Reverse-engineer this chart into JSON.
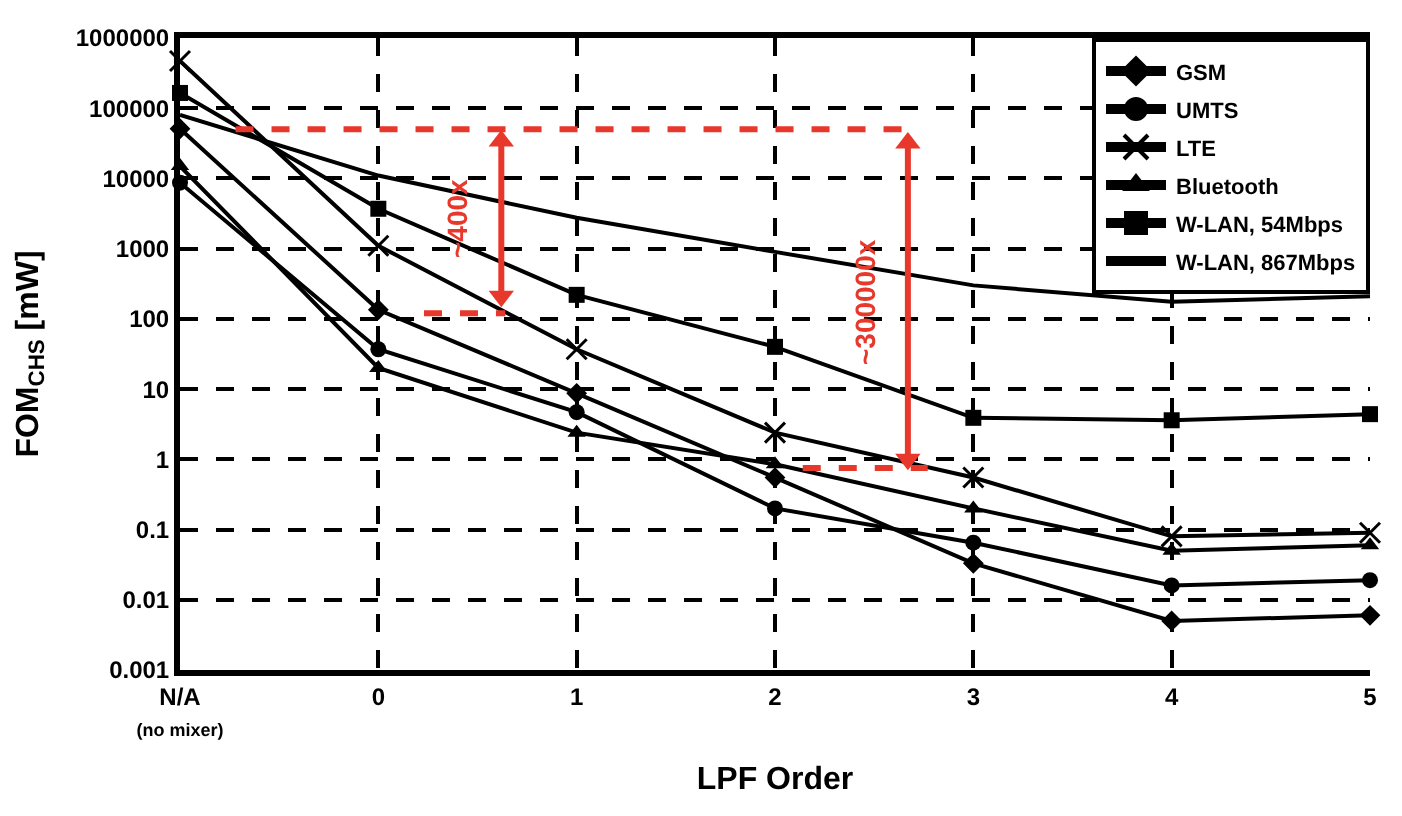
{
  "chart_data": {
    "type": "line",
    "xlabel": "LPF Order",
    "ylabel": "FOM$_{CHS}$ [mW]",
    "x": [
      -1,
      0,
      1,
      2,
      3,
      4,
      5
    ],
    "xlim": [
      -1,
      5
    ],
    "xticks": [
      {
        "value": -1,
        "label": "N/A\n(no mixer)"
      },
      0,
      1,
      2,
      3,
      4,
      5
    ],
    "log": "y",
    "ylim": [
      0.001,
      1000000
    ],
    "yticks": [
      0.001,
      0.01,
      0.1,
      1,
      10,
      100,
      1000,
      10000,
      100000,
      1000000
    ],
    "grid": true,
    "legend": "top right",
    "series": [
      {
        "name": "GSM",
        "color": "#000000",
        "marker": "diamond",
        "values": [
          51000,
          135,
          8.7,
          0.55,
          0.033,
          0.005,
          0.006
        ]
      },
      {
        "name": "UMTS",
        "color": "#000000",
        "marker": "circle",
        "values": [
          8700,
          37,
          4.7,
          0.2,
          0.065,
          0.016,
          0.019
        ]
      },
      {
        "name": "LTE",
        "color": "#000000",
        "marker": "cross",
        "values": [
          470000,
          1100,
          37,
          2.4,
          0.55,
          0.08,
          0.09
        ]
      },
      {
        "name": "Bluetooth",
        "color": "#000000",
        "marker": "triangle",
        "values": [
          15000,
          20,
          2.4,
          0.85,
          0.2,
          0.05,
          0.06
        ]
      },
      {
        "name": "W-LAN, 54Mbps",
        "color": "#000000",
        "marker": "square",
        "values": [
          165000,
          3700,
          220,
          40,
          3.9,
          3.6,
          4.4
        ]
      },
      {
        "name": "W-LAN, 867Mbps",
        "color": "#000000",
        "marker": "none",
        "values": [
          80000,
          11000,
          2750,
          900,
          300,
          175,
          210
        ]
      },
      {
        "color": "#e8382b",
        "line_style": "dashed",
        "marker": "none",
        "x": [
          -0.72,
          2.67
        ],
        "values": [
          50000,
          50000
        ]
      },
      {
        "color": "#e8382b",
        "line_style": "dashed",
        "marker": "none",
        "x": [
          0.23,
          0.64
        ],
        "values": [
          120,
          120
        ]
      },
      {
        "color": "#e8382b",
        "line_style": "dashed",
        "marker": "none",
        "x": [
          2.14,
          2.77
        ],
        "values": [
          0.75,
          0.75
        ]
      },
      {
        "color": "#e8382b",
        "line_style": "solid",
        "marker": "triangle",
        "x": [
          0.62,
          0.62
        ],
        "values": [
          34000,
          210
        ]
      },
      {
        "color": "#e8382b",
        "line_style": "solid",
        "marker": "triangle",
        "x": [
          2.67,
          2.67
        ],
        "values": [
          32000,
          1
        ]
      }
    ],
    "annotations": [
      "~400x",
      "~300000x"
    ]
  }
}
